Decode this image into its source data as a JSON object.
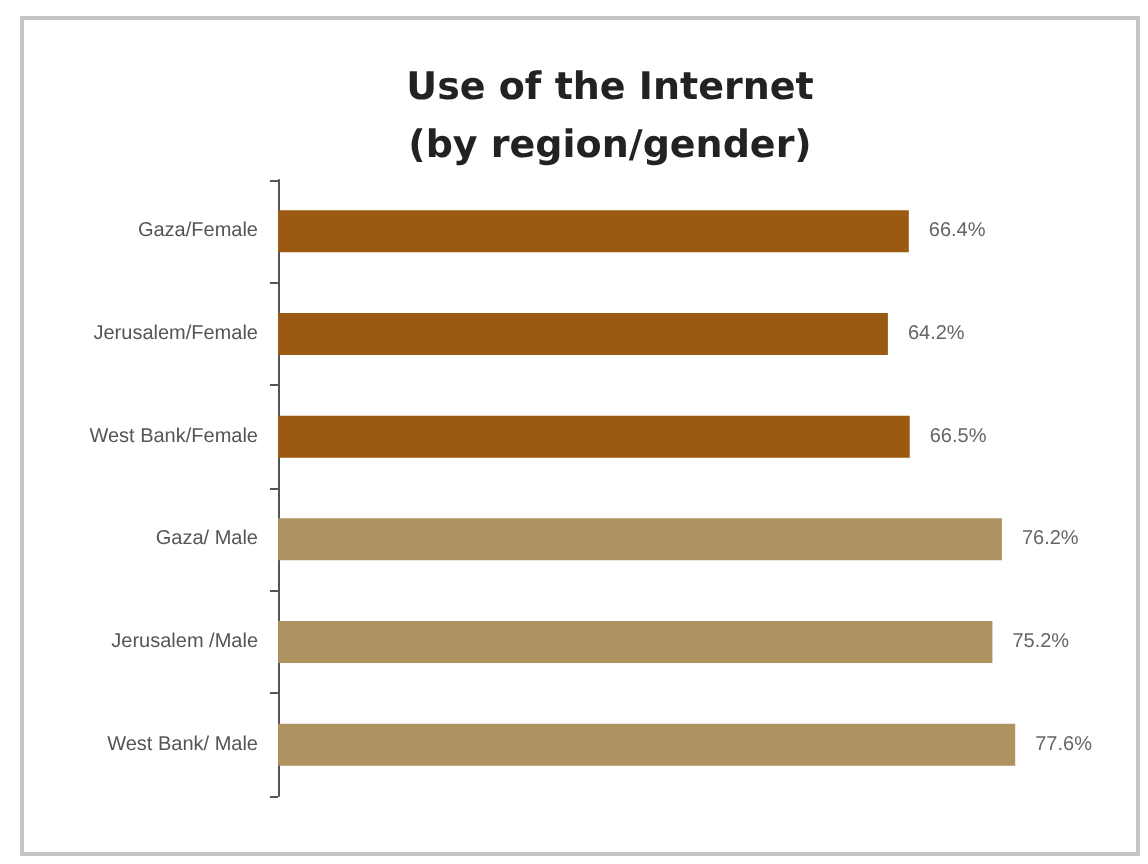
{
  "chart_data": {
    "type": "bar",
    "orientation": "horizontal",
    "title": "Use of the Internet\n(by region/gender)",
    "categories": [
      "Gaza/Female",
      "Jerusalem/Female",
      "West Bank/Female",
      "Gaza/ Male",
      "Jerusalem /Male",
      "West Bank/ Male"
    ],
    "values": [
      66.4,
      64.2,
      66.5,
      76.2,
      75.2,
      77.6
    ],
    "value_labels": [
      "66.4%",
      "64.2%",
      "66.5%",
      "76.2%",
      "75.2%",
      "77.6%"
    ],
    "colors": [
      "#9a5a12",
      "#9a5a12",
      "#9a5a12",
      "#ae9260",
      "#ae9260",
      "#ae9260"
    ],
    "tick_labels": "y",
    "grid": false
  }
}
